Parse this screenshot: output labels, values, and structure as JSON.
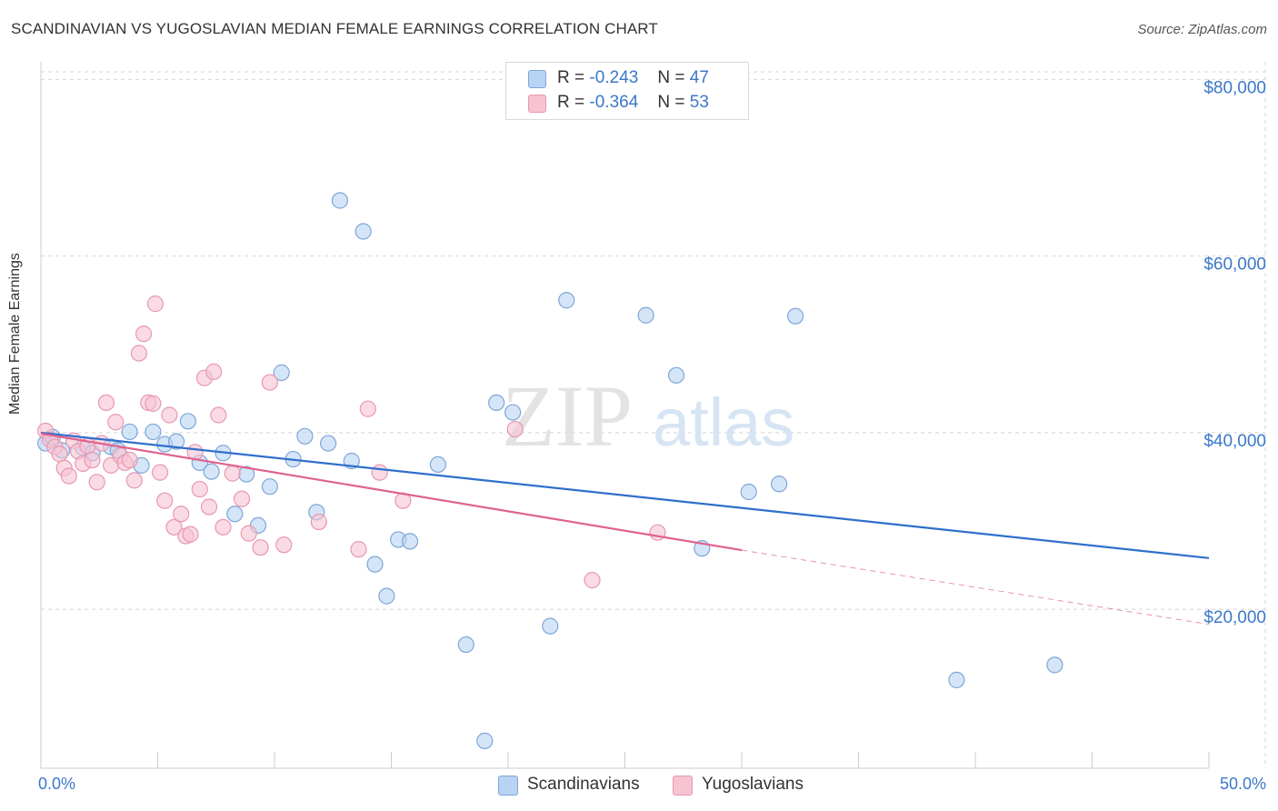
{
  "title": "SCANDINAVIAN VS YUGOSLAVIAN MEDIAN FEMALE EARNINGS CORRELATION CHART",
  "source": "Source: ZipAtlas.com",
  "watermark": {
    "zip": "ZIP",
    "atlas": "atlas"
  },
  "legend": {
    "r_label": "R =",
    "n_label": "N =",
    "scandinavian": {
      "r": "-0.243",
      "n": "47"
    },
    "yugoslavian": {
      "r": "-0.364",
      "n": "53"
    }
  },
  "colors": {
    "blue_fill": "#b9d3f3",
    "blue_stroke": "#7ea6d8",
    "blue_line": "#2f6fcc",
    "pink_fill": "#f7c3d2",
    "pink_stroke": "#e897b2",
    "pink_line": "#e0628e",
    "tick_text": "#3a78c9",
    "grid": "#d5d5d5"
  },
  "chart_data": {
    "type": "scatter",
    "title": "SCANDINAVIAN VS YUGOSLAVIAN MEDIAN FEMALE EARNINGS CORRELATION CHART",
    "xlabel": "",
    "ylabel": "Median Female Earnings",
    "xlim": [
      0,
      50
    ],
    "ylim": [
      2000,
      82000
    ],
    "x_tick_labels": [
      "0.0%",
      "50.0%"
    ],
    "y_ticks": [
      {
        "value": 80000,
        "label": "$80,000"
      },
      {
        "value": 60000,
        "label": "$60,000"
      },
      {
        "value": 40000,
        "label": "$40,000"
      },
      {
        "value": 20000,
        "label": "$20,000"
      }
    ],
    "grid": true,
    "series": [
      {
        "name": "Scandinavians",
        "trend": {
          "x": [
            0,
            50
          ],
          "y": [
            40000,
            25800
          ]
        },
        "points": [
          [
            0.2,
            38800
          ],
          [
            0.5,
            39500
          ],
          [
            0.9,
            38000
          ],
          [
            1.8,
            38300
          ],
          [
            2.2,
            37700
          ],
          [
            3.0,
            38400
          ],
          [
            3.3,
            38000
          ],
          [
            3.8,
            40100
          ],
          [
            4.3,
            36300
          ],
          [
            4.8,
            40100
          ],
          [
            5.3,
            38700
          ],
          [
            5.8,
            39000
          ],
          [
            6.3,
            41300
          ],
          [
            6.8,
            36600
          ],
          [
            7.3,
            35600
          ],
          [
            7.8,
            37700
          ],
          [
            8.3,
            30800
          ],
          [
            8.8,
            35300
          ],
          [
            9.3,
            29500
          ],
          [
            9.8,
            33900
          ],
          [
            10.3,
            46800
          ],
          [
            10.8,
            37000
          ],
          [
            11.3,
            39600
          ],
          [
            11.8,
            31000
          ],
          [
            12.3,
            38800
          ],
          [
            12.8,
            66300
          ],
          [
            13.3,
            36800
          ],
          [
            13.8,
            62800
          ],
          [
            14.3,
            25100
          ],
          [
            14.8,
            21500
          ],
          [
            15.3,
            27900
          ],
          [
            15.8,
            27700
          ],
          [
            17.0,
            36400
          ],
          [
            18.2,
            16000
          ],
          [
            19.0,
            5100
          ],
          [
            19.5,
            43400
          ],
          [
            20.2,
            42300
          ],
          [
            21.8,
            18100
          ],
          [
            22.5,
            55000
          ],
          [
            25.9,
            53300
          ],
          [
            27.2,
            46500
          ],
          [
            28.3,
            26900
          ],
          [
            30.3,
            33300
          ],
          [
            31.6,
            34200
          ],
          [
            32.3,
            53200
          ],
          [
            39.2,
            12000
          ],
          [
            43.4,
            13700
          ]
        ]
      },
      {
        "name": "Yugoslavians",
        "trend": {
          "x": [
            0,
            30
          ],
          "y": [
            39900,
            26700
          ]
        },
        "trend_dashed": {
          "x": [
            30,
            50
          ],
          "y": [
            26700,
            18300
          ]
        },
        "points": [
          [
            0.2,
            40200
          ],
          [
            0.4,
            39200
          ],
          [
            0.6,
            38400
          ],
          [
            0.8,
            37600
          ],
          [
            1.0,
            36000
          ],
          [
            1.2,
            35100
          ],
          [
            1.4,
            39100
          ],
          [
            1.6,
            37900
          ],
          [
            1.8,
            36500
          ],
          [
            2.0,
            38500
          ],
          [
            2.2,
            36900
          ],
          [
            2.4,
            34400
          ],
          [
            2.6,
            38800
          ],
          [
            2.8,
            43400
          ],
          [
            3.0,
            36300
          ],
          [
            3.2,
            41200
          ],
          [
            3.4,
            37400
          ],
          [
            3.6,
            36600
          ],
          [
            3.8,
            36900
          ],
          [
            4.0,
            34600
          ],
          [
            4.2,
            49000
          ],
          [
            4.4,
            51200
          ],
          [
            4.6,
            43400
          ],
          [
            4.8,
            43300
          ],
          [
            4.9,
            54600
          ],
          [
            5.1,
            35500
          ],
          [
            5.3,
            32300
          ],
          [
            5.5,
            42000
          ],
          [
            5.7,
            29300
          ],
          [
            6.0,
            30800
          ],
          [
            6.2,
            28300
          ],
          [
            6.4,
            28500
          ],
          [
            6.6,
            37800
          ],
          [
            6.8,
            33600
          ],
          [
            7.0,
            46200
          ],
          [
            7.2,
            31600
          ],
          [
            7.4,
            46900
          ],
          [
            7.6,
            42000
          ],
          [
            7.8,
            29300
          ],
          [
            8.2,
            35400
          ],
          [
            8.6,
            32500
          ],
          [
            8.9,
            28600
          ],
          [
            9.4,
            27000
          ],
          [
            9.8,
            45700
          ],
          [
            10.4,
            27300
          ],
          [
            11.9,
            29900
          ],
          [
            13.6,
            26800
          ],
          [
            14.0,
            42700
          ],
          [
            14.5,
            35500
          ],
          [
            15.5,
            32300
          ],
          [
            20.3,
            40400
          ],
          [
            23.6,
            23300
          ],
          [
            26.4,
            28700
          ]
        ]
      }
    ]
  }
}
